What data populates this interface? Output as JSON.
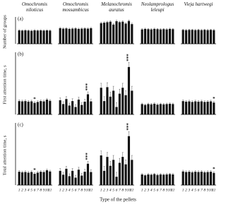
{
  "chart_data": [
    {
      "type": "bar",
      "panel_label": "(a)",
      "y_label": "Number of groups",
      "ylim": [
        0,
        10
      ],
      "color": "#111111",
      "series": [
        {
          "name": "Omochromis niloticus",
          "values": [
            5.6,
            5.5,
            5.6,
            5.5,
            5.4,
            5.6,
            5.5,
            5.6,
            5.5,
            5.6,
            5.5
          ],
          "errors": [
            0.3,
            0.3,
            0.3,
            0.3,
            0.3,
            0.3,
            0.3,
            0.3,
            0.3,
            0.3,
            0.3
          ]
        },
        {
          "name": "Omochromis mossambicus",
          "values": [
            6.5,
            6.3,
            6.4,
            6.2,
            6.3,
            6.4,
            6.2,
            6.3,
            6.4,
            6.3,
            6.5
          ],
          "errors": [
            0.3,
            0.3,
            0.3,
            0.3,
            0.3,
            0.3,
            0.3,
            0.3,
            0.3,
            0.3,
            0.3
          ]
        },
        {
          "name": "Melanochromis auratus",
          "values": [
            8.6,
            8.8,
            9.0,
            9.2,
            8.0,
            9.4,
            9.0,
            9.2,
            8.4,
            9.5,
            8.2
          ],
          "errors": [
            0.4,
            0.4,
            0.4,
            0.4,
            0.4,
            0.4,
            0.4,
            0.4,
            0.4,
            0.4,
            0.4
          ]
        },
        {
          "name": "Neolamprologus leleupi",
          "values": [
            6.0,
            6.2,
            6.1,
            6.0,
            6.2,
            6.1,
            6.0,
            6.1,
            6.0,
            6.2,
            6.1
          ],
          "errors": [
            0.3,
            0.3,
            0.3,
            0.3,
            0.3,
            0.3,
            0.3,
            0.3,
            0.3,
            0.3,
            0.3
          ]
        },
        {
          "name": "Vieja hartwegi",
          "values": [
            5.8,
            5.7,
            5.8,
            5.8,
            5.7,
            5.8,
            5.7,
            5.8,
            5.7,
            5.8,
            5.7
          ],
          "errors": [
            0.3,
            0.3,
            0.3,
            0.3,
            0.3,
            0.3,
            0.3,
            0.3,
            0.3,
            0.3,
            0.3
          ]
        }
      ]
    },
    {
      "type": "bar",
      "panel_label": "(b)",
      "y_label": "First attention time, s",
      "ylim": [
        0,
        20
      ],
      "color": "#111111",
      "series": [
        {
          "values": [
            4.5,
            4.4,
            4.5,
            4.3,
            4.4,
            3.9,
            4.2,
            4.5,
            4.4,
            5.0,
            4.6
          ],
          "errors": [
            0.4,
            0.4,
            0.4,
            0.4,
            0.4,
            0.4,
            0.4,
            0.4,
            0.4,
            0.4,
            0.4
          ],
          "annotations": [
            null,
            null,
            null,
            null,
            null,
            "*",
            null,
            null,
            null,
            null,
            null
          ]
        },
        {
          "values": [
            4.8,
            3.5,
            5.2,
            3.0,
            4.5,
            2.5,
            5.0,
            3.2,
            4.3,
            6.8,
            4.4
          ],
          "errors": [
            0.8,
            0.8,
            0.8,
            0.8,
            0.8,
            0.8,
            0.8,
            0.8,
            0.8,
            0.8,
            0.8
          ],
          "annotations": [
            null,
            null,
            null,
            null,
            null,
            null,
            null,
            null,
            null,
            "***",
            null
          ]
        },
        {
          "values": [
            9.0,
            4.5,
            9.2,
            6.0,
            8.0,
            2.5,
            7.0,
            9.0,
            6.5,
            16.0,
            8.0
          ],
          "errors": [
            1.5,
            1.5,
            1.5,
            1.5,
            1.5,
            1.5,
            1.5,
            1.5,
            1.5,
            1.5,
            1.5
          ],
          "annotations": [
            null,
            null,
            null,
            null,
            null,
            null,
            null,
            null,
            null,
            "***",
            null
          ]
        },
        {
          "values": [
            3.5,
            3.2,
            3.5,
            3.4,
            3.6,
            3.3,
            3.5,
            3.4,
            3.5,
            3.6,
            3.5
          ],
          "errors": [
            0.3,
            0.3,
            0.3,
            0.3,
            0.3,
            0.3,
            0.3,
            0.3,
            0.3,
            0.3,
            0.3
          ]
        },
        {
          "values": [
            4.5,
            4.3,
            4.4,
            4.2,
            4.4,
            4.3,
            4.4,
            4.2,
            4.3,
            4.4,
            4.0
          ],
          "errors": [
            0.4,
            0.4,
            0.4,
            0.4,
            0.4,
            0.4,
            0.4,
            0.4,
            0.4,
            0.4,
            0.4
          ],
          "annotations": [
            null,
            null,
            null,
            null,
            null,
            null,
            null,
            null,
            null,
            null,
            "*"
          ]
        }
      ]
    },
    {
      "type": "bar",
      "panel_label": "(c)",
      "y_label": "Total attention time, s",
      "ylim": [
        0,
        20
      ],
      "color": "#111111",
      "x_label": "Type of the pellets",
      "categories": [
        "1",
        "2",
        "3",
        "4",
        "5",
        "6",
        "7",
        "8",
        "9",
        "10",
        "11"
      ],
      "series": [
        {
          "values": [
            4.5,
            4.3,
            4.4,
            4.2,
            4.4,
            3.8,
            4.2,
            4.5,
            4.4,
            5.0,
            4.6
          ],
          "errors": [
            0.4,
            0.4,
            0.4,
            0.4,
            0.4,
            0.4,
            0.4,
            0.4,
            0.4,
            0.4,
            0.4
          ],
          "annotations": [
            null,
            null,
            null,
            null,
            null,
            "*",
            null,
            null,
            null,
            null,
            null
          ]
        },
        {
          "values": [
            4.8,
            3.5,
            5.5,
            3.0,
            4.8,
            2.5,
            5.2,
            3.2,
            4.5,
            7.2,
            4.4
          ],
          "errors": [
            0.8,
            0.8,
            0.8,
            0.8,
            0.8,
            0.8,
            0.8,
            0.8,
            0.8,
            0.8,
            0.8
          ],
          "annotations": [
            null,
            null,
            null,
            null,
            null,
            null,
            null,
            null,
            null,
            "***",
            null
          ]
        },
        {
          "values": [
            10.0,
            4.8,
            9.5,
            6.5,
            8.5,
            2.8,
            7.5,
            9.5,
            7.0,
            16.5,
            8.5
          ],
          "errors": [
            1.5,
            1.5,
            1.5,
            1.5,
            1.5,
            1.5,
            1.5,
            1.5,
            1.5,
            1.5,
            1.5
          ],
          "annotations": [
            null,
            null,
            null,
            null,
            null,
            null,
            null,
            null,
            null,
            "***",
            null
          ]
        },
        {
          "values": [
            3.6,
            3.3,
            3.6,
            3.5,
            3.7,
            3.4,
            3.6,
            3.5,
            3.6,
            3.7,
            3.6
          ],
          "errors": [
            0.3,
            0.3,
            0.3,
            0.3,
            0.3,
            0.3,
            0.3,
            0.3,
            0.3,
            0.3,
            0.3
          ]
        },
        {
          "values": [
            4.6,
            4.4,
            4.5,
            4.3,
            4.5,
            4.4,
            4.5,
            4.3,
            4.4,
            4.5,
            4.1
          ],
          "errors": [
            0.4,
            0.4,
            0.4,
            0.4,
            0.4,
            0.4,
            0.4,
            0.4,
            0.4,
            0.4,
            0.4
          ],
          "annotations": [
            null,
            null,
            null,
            null,
            null,
            null,
            null,
            null,
            null,
            null,
            "*"
          ]
        }
      ]
    }
  ]
}
